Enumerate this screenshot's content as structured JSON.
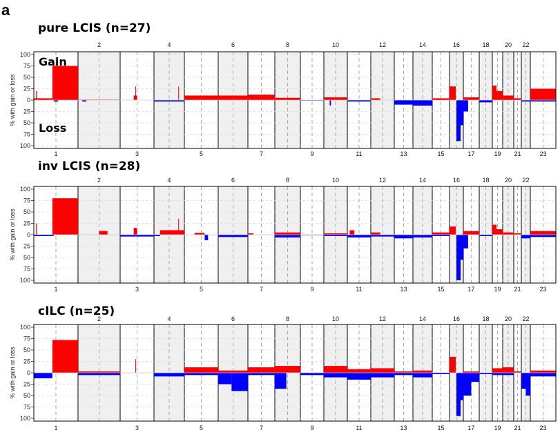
{
  "figure_label": "a",
  "colors": {
    "gain": "#ff0000",
    "loss": "#0000ff",
    "shade": "#f0f0f0",
    "grid": "#d9d9d9",
    "centromere": "#aaaaaa"
  },
  "chart_data": [
    {
      "type": "bar",
      "title": "pure LCIS (n=27)",
      "ylabel": "% with gain or loss",
      "annotations": [
        "Gain",
        "Loss"
      ],
      "ylim": [
        -100,
        100
      ],
      "yticks": [
        "100",
        "75",
        "50",
        "25",
        "0",
        "25",
        "50",
        "75",
        "100"
      ],
      "chromosomes": [
        "1",
        "2",
        "3",
        "4",
        "5",
        "6",
        "7",
        "8",
        "9",
        "10",
        "11",
        "12",
        "13",
        "14",
        "15",
        "16",
        "17",
        "18",
        "19",
        "20",
        "21",
        "22",
        "23"
      ],
      "gain": [
        {
          "chr": "1",
          "start": 0,
          "end": 0.42,
          "value": 4
        },
        {
          "chr": "1",
          "start": 0.05,
          "end": 0.07,
          "value": 20
        },
        {
          "chr": "1",
          "start": 0.42,
          "end": 1,
          "value": 75
        },
        {
          "chr": "2",
          "start": 0,
          "end": 1,
          "value": 1
        },
        {
          "chr": "3",
          "start": 0.4,
          "end": 0.5,
          "value": 10
        },
        {
          "chr": "3",
          "start": 0.45,
          "end": 0.47,
          "value": 30
        },
        {
          "chr": "4",
          "start": 0.8,
          "end": 0.82,
          "value": 30
        },
        {
          "chr": "5",
          "start": 0,
          "end": 1,
          "value": 10
        },
        {
          "chr": "6",
          "start": 0,
          "end": 1,
          "value": 10
        },
        {
          "chr": "7",
          "start": 0,
          "end": 1,
          "value": 12
        },
        {
          "chr": "8",
          "start": 0,
          "end": 1,
          "value": 5
        },
        {
          "chr": "10",
          "start": 0,
          "end": 1,
          "value": 6
        },
        {
          "chr": "12",
          "start": 0,
          "end": 0.4,
          "value": 4
        },
        {
          "chr": "15",
          "start": 0,
          "end": 1,
          "value": 4
        },
        {
          "chr": "16",
          "start": 0,
          "end": 0.45,
          "value": 30
        },
        {
          "chr": "17",
          "start": 0,
          "end": 1,
          "value": 6
        },
        {
          "chr": "19",
          "start": 0,
          "end": 0.4,
          "value": 32
        },
        {
          "chr": "19",
          "start": 0.4,
          "end": 1,
          "value": 20
        },
        {
          "chr": "20",
          "start": 0,
          "end": 1,
          "value": 10
        },
        {
          "chr": "21",
          "start": 0,
          "end": 1,
          "value": 4
        },
        {
          "chr": "23",
          "start": 0,
          "end": 1,
          "value": 25
        }
      ],
      "loss": [
        {
          "chr": "1",
          "start": 0.45,
          "end": 0.55,
          "value": 3
        },
        {
          "chr": "2",
          "start": 0.1,
          "end": 0.2,
          "value": 3
        },
        {
          "chr": "4",
          "start": 0,
          "end": 1,
          "value": 3
        },
        {
          "chr": "9",
          "start": 0,
          "end": 1,
          "value": 1
        },
        {
          "chr": "10",
          "start": 0.25,
          "end": 0.3,
          "value": 12
        },
        {
          "chr": "11",
          "start": 0,
          "end": 1,
          "value": 3
        },
        {
          "chr": "13",
          "start": 0,
          "end": 1,
          "value": 10
        },
        {
          "chr": "14",
          "start": 0,
          "end": 1,
          "value": 12
        },
        {
          "chr": "16",
          "start": 0.5,
          "end": 0.8,
          "value": 90
        },
        {
          "chr": "16",
          "start": 0.8,
          "end": 1,
          "value": 55
        },
        {
          "chr": "17",
          "start": 0,
          "end": 0.3,
          "value": 25
        },
        {
          "chr": "18",
          "start": 0,
          "end": 1,
          "value": 5
        },
        {
          "chr": "22",
          "start": 0,
          "end": 1,
          "value": 3
        },
        {
          "chr": "23",
          "start": 0,
          "end": 1,
          "value": 3
        }
      ]
    },
    {
      "type": "bar",
      "title": "inv LCIS (n=28)",
      "ylabel": "% with gain or loss",
      "ylim": [
        -100,
        100
      ],
      "yticks": [
        "100",
        "75",
        "50",
        "25",
        "0",
        "25",
        "50",
        "75",
        "100"
      ],
      "chromosomes": [
        "1",
        "2",
        "3",
        "4",
        "5",
        "6",
        "7",
        "8",
        "9",
        "10",
        "11",
        "12",
        "13",
        "14",
        "15",
        "16",
        "17",
        "18",
        "19",
        "20",
        "21",
        "22",
        "23"
      ],
      "gain": [
        {
          "chr": "1",
          "start": 0.05,
          "end": 0.07,
          "value": 25
        },
        {
          "chr": "1",
          "start": 0.42,
          "end": 1,
          "value": 80
        },
        {
          "chr": "2",
          "start": 0.5,
          "end": 0.7,
          "value": 8
        },
        {
          "chr": "3",
          "start": 0.4,
          "end": 0.5,
          "value": 15
        },
        {
          "chr": "4",
          "start": 0.2,
          "end": 1,
          "value": 10
        },
        {
          "chr": "4",
          "start": 0.8,
          "end": 0.82,
          "value": 35
        },
        {
          "chr": "5",
          "start": 0.3,
          "end": 0.6,
          "value": 4
        },
        {
          "chr": "7",
          "start": 0,
          "end": 0.2,
          "value": 3
        },
        {
          "chr": "8",
          "start": 0,
          "end": 1,
          "value": 5
        },
        {
          "chr": "10",
          "start": 0,
          "end": 1,
          "value": 3
        },
        {
          "chr": "11",
          "start": 0.1,
          "end": 0.3,
          "value": 10
        },
        {
          "chr": "12",
          "start": 0,
          "end": 0.4,
          "value": 5
        },
        {
          "chr": "15",
          "start": 0,
          "end": 1,
          "value": 5
        },
        {
          "chr": "16",
          "start": 0,
          "end": 0.45,
          "value": 18
        },
        {
          "chr": "17",
          "start": 0,
          "end": 1,
          "value": 8
        },
        {
          "chr": "19",
          "start": 0,
          "end": 0.4,
          "value": 22
        },
        {
          "chr": "19",
          "start": 0.4,
          "end": 1,
          "value": 12
        },
        {
          "chr": "20",
          "start": 0,
          "end": 1,
          "value": 5
        },
        {
          "chr": "21",
          "start": 0,
          "end": 1,
          "value": 3
        },
        {
          "chr": "23",
          "start": 0,
          "end": 1,
          "value": 8
        }
      ],
      "loss": [
        {
          "chr": "1",
          "start": 0,
          "end": 0.45,
          "value": 3
        },
        {
          "chr": "3",
          "start": 0,
          "end": 1,
          "value": 4
        },
        {
          "chr": "4",
          "start": 0,
          "end": 0.2,
          "value": 3
        },
        {
          "chr": "5",
          "start": 0.6,
          "end": 0.7,
          "value": 12
        },
        {
          "chr": "6",
          "start": 0,
          "end": 1,
          "value": 5
        },
        {
          "chr": "8",
          "start": 0,
          "end": 1,
          "value": 6
        },
        {
          "chr": "9",
          "start": 0,
          "end": 1,
          "value": 1
        },
        {
          "chr": "10",
          "start": 0,
          "end": 1,
          "value": 3
        },
        {
          "chr": "11",
          "start": 0,
          "end": 1,
          "value": 6
        },
        {
          "chr": "12",
          "start": 0,
          "end": 1,
          "value": 4
        },
        {
          "chr": "13",
          "start": 0,
          "end": 1,
          "value": 8
        },
        {
          "chr": "14",
          "start": 0,
          "end": 1,
          "value": 6
        },
        {
          "chr": "15",
          "start": 0,
          "end": 1,
          "value": 3
        },
        {
          "chr": "16",
          "start": 0.5,
          "end": 0.8,
          "value": 100
        },
        {
          "chr": "16",
          "start": 0.8,
          "end": 1,
          "value": 55
        },
        {
          "chr": "17",
          "start": 0,
          "end": 0.3,
          "value": 30
        },
        {
          "chr": "18",
          "start": 0,
          "end": 1,
          "value": 3
        },
        {
          "chr": "22",
          "start": 0,
          "end": 1,
          "value": 8
        },
        {
          "chr": "23",
          "start": 0,
          "end": 1,
          "value": 5
        }
      ]
    },
    {
      "type": "bar",
      "title": "cILC (n=25)",
      "ylabel": "% with gain or loss",
      "ylim": [
        -100,
        100
      ],
      "yticks": [
        "100",
        "75",
        "50",
        "25",
        "0",
        "25",
        "50",
        "75",
        "100"
      ],
      "chromosomes": [
        "1",
        "2",
        "3",
        "4",
        "5",
        "6",
        "7",
        "8",
        "9",
        "10",
        "11",
        "12",
        "13",
        "14",
        "15",
        "16",
        "17",
        "18",
        "19",
        "20",
        "21",
        "22",
        "23"
      ],
      "gain": [
        {
          "chr": "1",
          "start": 0.42,
          "end": 1,
          "value": 72
        },
        {
          "chr": "2",
          "start": 0,
          "end": 1,
          "value": 3
        },
        {
          "chr": "3",
          "start": 0.45,
          "end": 0.47,
          "value": 30
        },
        {
          "chr": "5",
          "start": 0,
          "end": 1,
          "value": 12
        },
        {
          "chr": "6",
          "start": 0,
          "end": 1,
          "value": 5
        },
        {
          "chr": "7",
          "start": 0,
          "end": 1,
          "value": 12
        },
        {
          "chr": "8",
          "start": 0,
          "end": 1,
          "value": 15
        },
        {
          "chr": "10",
          "start": 0,
          "end": 1,
          "value": 15
        },
        {
          "chr": "11",
          "start": 0,
          "end": 1,
          "value": 8
        },
        {
          "chr": "12",
          "start": 0,
          "end": 1,
          "value": 10
        },
        {
          "chr": "13",
          "start": 0,
          "end": 1,
          "value": 3
        },
        {
          "chr": "14",
          "start": 0,
          "end": 1,
          "value": 5
        },
        {
          "chr": "16",
          "start": 0,
          "end": 0.45,
          "value": 35
        },
        {
          "chr": "17",
          "start": 0,
          "end": 1,
          "value": 3
        },
        {
          "chr": "19",
          "start": 0,
          "end": 1,
          "value": 10
        },
        {
          "chr": "20",
          "start": 0,
          "end": 1,
          "value": 12
        },
        {
          "chr": "21",
          "start": 0,
          "end": 1,
          "value": 3
        },
        {
          "chr": "23",
          "start": 0,
          "end": 1,
          "value": 5
        }
      ],
      "loss": [
        {
          "chr": "1",
          "start": 0,
          "end": 0.42,
          "value": 12
        },
        {
          "chr": "2",
          "start": 0,
          "end": 1,
          "value": 5
        },
        {
          "chr": "4",
          "start": 0,
          "end": 1,
          "value": 8
        },
        {
          "chr": "5",
          "start": 0,
          "end": 1,
          "value": 5
        },
        {
          "chr": "6",
          "start": 0,
          "end": 0.45,
          "value": 25
        },
        {
          "chr": "6",
          "start": 0.45,
          "end": 1,
          "value": 40
        },
        {
          "chr": "7",
          "start": 0,
          "end": 1,
          "value": 5
        },
        {
          "chr": "8",
          "start": 0,
          "end": 0.45,
          "value": 35
        },
        {
          "chr": "9",
          "start": 0,
          "end": 1,
          "value": 5
        },
        {
          "chr": "10",
          "start": 0,
          "end": 1,
          "value": 10
        },
        {
          "chr": "11",
          "start": 0,
          "end": 1,
          "value": 15
        },
        {
          "chr": "12",
          "start": 0,
          "end": 1,
          "value": 10
        },
        {
          "chr": "13",
          "start": 0,
          "end": 1,
          "value": 5
        },
        {
          "chr": "14",
          "start": 0,
          "end": 1,
          "value": 10
        },
        {
          "chr": "15",
          "start": 0,
          "end": 1,
          "value": 3
        },
        {
          "chr": "16",
          "start": 0.5,
          "end": 0.8,
          "value": 95
        },
        {
          "chr": "16",
          "start": 0.8,
          "end": 1,
          "value": 60
        },
        {
          "chr": "17",
          "start": 0,
          "end": 0.5,
          "value": 50
        },
        {
          "chr": "17",
          "start": 0.5,
          "end": 1,
          "value": 20
        },
        {
          "chr": "18",
          "start": 0,
          "end": 1,
          "value": 3
        },
        {
          "chr": "19",
          "start": 0,
          "end": 1,
          "value": 5
        },
        {
          "chr": "20",
          "start": 0,
          "end": 1,
          "value": 5
        },
        {
          "chr": "22",
          "start": 0,
          "end": 0.5,
          "value": 35
        },
        {
          "chr": "22",
          "start": 0.5,
          "end": 1,
          "value": 50
        },
        {
          "chr": "23",
          "start": 0,
          "end": 1,
          "value": 8
        }
      ]
    }
  ]
}
